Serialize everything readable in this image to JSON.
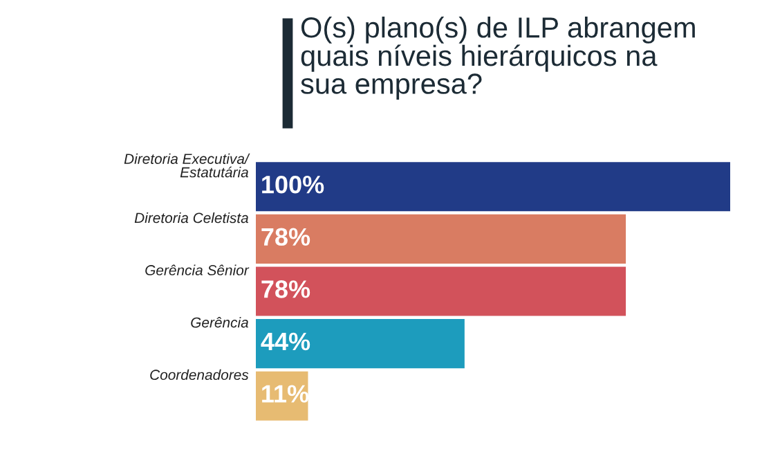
{
  "chart_data": {
    "type": "bar",
    "orientation": "horizontal",
    "title": "O(s) plano(s) de ILP abrangem\nquais níveis hierárquicos na\nsua empresa?",
    "categories": [
      "Diretoria Executiva/\nEstatutária",
      "Diretoria Celetista",
      "Gerência Sênior",
      "Gerência",
      "Coordenadores"
    ],
    "values": [
      100,
      78,
      78,
      44,
      11
    ],
    "colors": [
      "#213b87",
      "#d97c62",
      "#d2525b",
      "#1d9cbd",
      "#e7bb72"
    ],
    "value_labels": [
      "100%",
      "78%",
      "78%",
      "44%",
      "11%"
    ],
    "xlim": [
      0,
      100
    ],
    "tick_labels": "y"
  }
}
